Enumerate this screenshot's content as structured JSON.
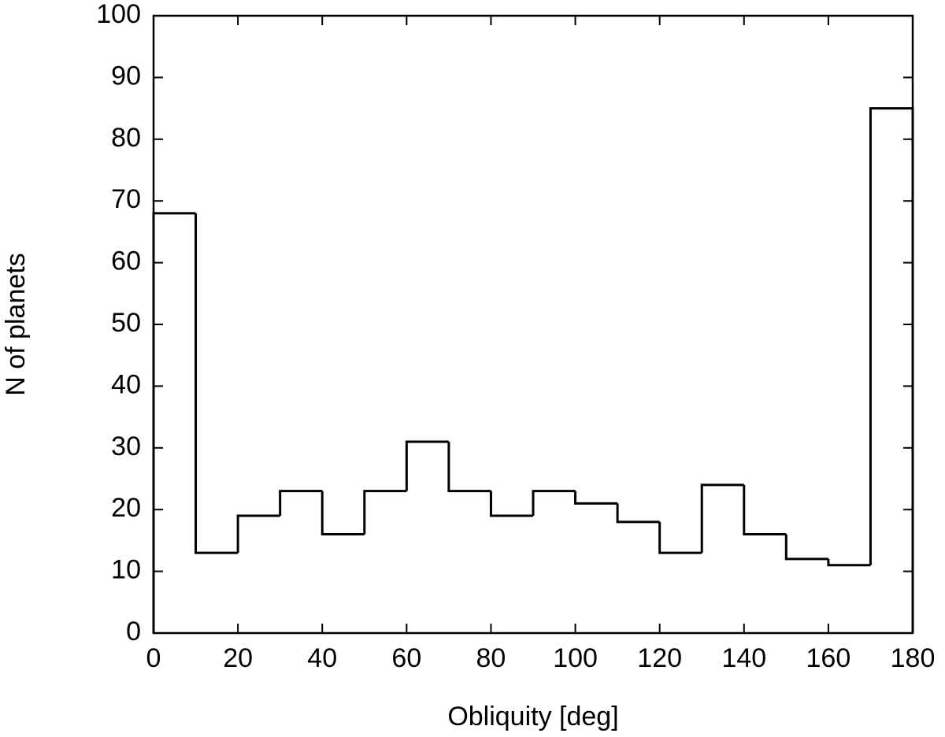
{
  "chart_data": {
    "type": "histogram",
    "xlabel": "Obliquity [deg]",
    "ylabel": "N of planets",
    "bins": [
      0,
      10,
      20,
      30,
      40,
      50,
      60,
      70,
      80,
      90,
      100,
      110,
      120,
      130,
      140,
      150,
      160,
      170,
      180
    ],
    "values": [
      68,
      13,
      19,
      23,
      16,
      23,
      31,
      23,
      19,
      23,
      21,
      18,
      13,
      24,
      16,
      12,
      11,
      85
    ],
    "color": "#000000",
    "xlim": [
      0,
      180
    ],
    "ylim": [
      0,
      100
    ],
    "xticks": [
      0,
      20,
      40,
      60,
      80,
      100,
      120,
      140,
      160,
      180
    ],
    "yticks": [
      0,
      10,
      20,
      30,
      40,
      50,
      60,
      70,
      80,
      90,
      100
    ]
  }
}
